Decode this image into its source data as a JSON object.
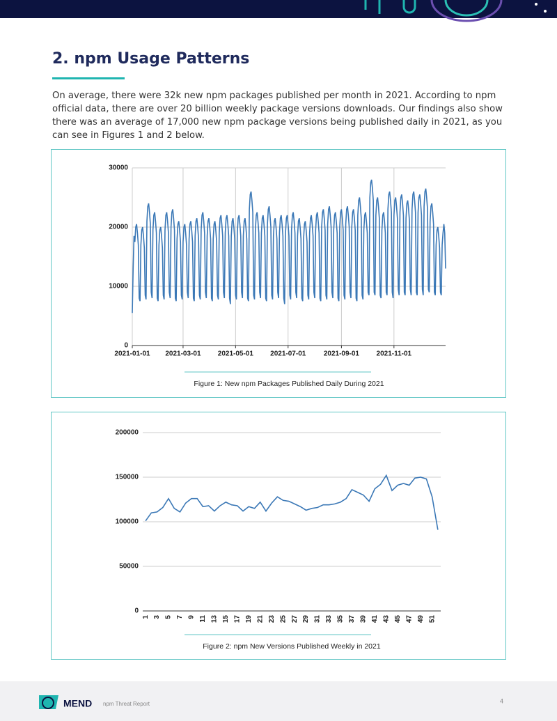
{
  "heading": "2. npm Usage Patterns",
  "paragraph": "On average, there were 32k new npm packages published per month in 2021. According to npm official data, there are over 20 billion weekly package versions downloads. Our findings also show there was an average of 17,000 new npm package versions being published daily in 2021, as you can see in Figures 1 and 2 below.",
  "chart_data": [
    {
      "type": "line",
      "caption": "Figure 1: New npm Packages Published Daily During 2021",
      "color": "#3b78b6",
      "grid": true,
      "xlim": [
        0,
        364
      ],
      "xticks": [
        {
          "value": 0,
          "label": "2021-01-01"
        },
        {
          "value": 59,
          "label": "2021-03-01"
        },
        {
          "value": 120,
          "label": "2021-05-01"
        },
        {
          "value": 181,
          "label": "2021-07-01"
        },
        {
          "value": 243,
          "label": "2021-09-01"
        },
        {
          "value": 304,
          "label": "2021-11-01"
        }
      ],
      "ylim": [
        0,
        30000
      ],
      "yticks": [
        0,
        10000,
        20000,
        30000
      ],
      "values": [
        5500,
        13000,
        18500,
        17500,
        20000,
        20500,
        19000,
        17000,
        8000,
        7500,
        17000,
        19500,
        20000,
        18500,
        16500,
        8500,
        7800,
        21000,
        23500,
        24000,
        22500,
        20500,
        9000,
        8000,
        19500,
        22000,
        22500,
        21000,
        19000,
        8000,
        7500,
        17000,
        19500,
        20000,
        18500,
        16500,
        8500,
        7800,
        19500,
        22000,
        22500,
        21000,
        19000,
        9000,
        8000,
        20000,
        22500,
        23000,
        21500,
        19500,
        8000,
        7500,
        18000,
        20500,
        21000,
        19500,
        17500,
        8500,
        7800,
        17500,
        20000,
        20500,
        19000,
        17000,
        9000,
        8000,
        18000,
        20500,
        21000,
        19500,
        17500,
        8000,
        7500,
        18500,
        21000,
        21500,
        20000,
        18000,
        8500,
        7800,
        19500,
        22000,
        22500,
        21000,
        19000,
        9000,
        8000,
        18500,
        21000,
        21500,
        20000,
        18000,
        8000,
        7500,
        18000,
        20500,
        21000,
        19500,
        17500,
        8500,
        7800,
        19000,
        21500,
        22000,
        20500,
        18500,
        9000,
        8000,
        19000,
        21500,
        22000,
        20500,
        18500,
        8000,
        7000,
        18500,
        21000,
        21500,
        20000,
        18000,
        8500,
        7800,
        19000,
        21500,
        22000,
        20500,
        18500,
        9000,
        8000,
        18500,
        21000,
        21500,
        20000,
        18000,
        8000,
        7500,
        23000,
        25500,
        26000,
        24500,
        22500,
        8500,
        7800,
        19500,
        22000,
        22500,
        21000,
        19000,
        9000,
        8000,
        19000,
        21500,
        22000,
        20500,
        18500,
        8000,
        7500,
        20500,
        23000,
        23500,
        22000,
        20000,
        8500,
        7800,
        18500,
        21000,
        21500,
        20000,
        18000,
        9000,
        8000,
        19000,
        21500,
        22000,
        20500,
        18500,
        8000,
        7000,
        19000,
        21500,
        22000,
        20500,
        18500,
        8500,
        7800,
        19500,
        22000,
        22500,
        21000,
        19000,
        9000,
        8000,
        18500,
        21000,
        21500,
        20000,
        18000,
        8000,
        7500,
        18000,
        20500,
        21000,
        19500,
        17500,
        8500,
        7800,
        19000,
        21500,
        22000,
        20500,
        18500,
        9000,
        8000,
        19500,
        22000,
        22500,
        21000,
        19000,
        8000,
        7500,
        20000,
        22500,
        23000,
        21500,
        19500,
        8500,
        7800,
        20500,
        23000,
        23500,
        22000,
        20000,
        9000,
        8000,
        19500,
        22000,
        22500,
        21000,
        19000,
        8000,
        7500,
        20000,
        22500,
        23000,
        21500,
        19500,
        8500,
        7800,
        20500,
        23000,
        23500,
        22000,
        20000,
        9000,
        8000,
        20000,
        22500,
        23000,
        21500,
        19500,
        8000,
        7500,
        22000,
        24500,
        25000,
        23500,
        21500,
        8500,
        7800,
        19500,
        22000,
        22500,
        21000,
        19000,
        9000,
        8500,
        25000,
        27500,
        28000,
        26500,
        24500,
        9000,
        8500,
        22000,
        24500,
        25000,
        23500,
        21500,
        8500,
        8000,
        19500,
        22000,
        22500,
        21000,
        19000,
        9000,
        8500,
        23000,
        25500,
        26000,
        24500,
        22500,
        9000,
        8000,
        22000,
        24500,
        25000,
        23500,
        21500,
        9500,
        8500,
        22500,
        25000,
        25500,
        24000,
        22000,
        9000,
        8500,
        21500,
        24000,
        24500,
        23000,
        21000,
        9500,
        8500,
        23000,
        25500,
        26000,
        24500,
        22500,
        9000,
        8500,
        22500,
        25000,
        25500,
        24000,
        22000,
        9500,
        8500,
        23500,
        26000,
        26500,
        25000,
        23000,
        9500,
        9000,
        21000,
        23500,
        24000,
        22500,
        20500,
        9000,
        8500,
        17000,
        19500,
        20000,
        18500,
        16500,
        9000,
        8500,
        17000,
        19000,
        20500,
        19000,
        13000
      ]
    },
    {
      "type": "line",
      "caption": "Figure 2: npm New Versions Published Weekly in 2021",
      "color": "#3b78b6",
      "grid": true,
      "categories": [
        "1",
        null,
        "3",
        null,
        "5",
        null,
        "7",
        null,
        "9",
        null,
        "11",
        null,
        "13",
        null,
        "15",
        null,
        "17",
        null,
        "19",
        null,
        "21",
        null,
        "23",
        null,
        "25",
        null,
        "27",
        null,
        "29",
        null,
        "31",
        null,
        "33",
        null,
        "35",
        null,
        "37",
        null,
        "39",
        null,
        "41",
        null,
        "43",
        null,
        "45",
        null,
        "47",
        null,
        "49",
        null,
        "51",
        null
      ],
      "ylim": [
        0,
        200000
      ],
      "yticks": [
        0,
        50000,
        100000,
        150000,
        200000
      ],
      "values": [
        101000,
        110000,
        111000,
        116000,
        126000,
        115000,
        111000,
        121000,
        126000,
        126000,
        117000,
        118000,
        112000,
        118000,
        122000,
        119000,
        118000,
        112000,
        117000,
        115000,
        122000,
        112000,
        121000,
        128000,
        124000,
        123000,
        120000,
        117000,
        113000,
        115000,
        116000,
        119000,
        119000,
        120000,
        122000,
        126000,
        136000,
        133000,
        130000,
        123000,
        137000,
        142000,
        152000,
        135000,
        141000,
        143000,
        141000,
        149000,
        150000,
        148000,
        128000,
        91000
      ]
    }
  ],
  "footer": {
    "brand": "MEND",
    "report": "npm Threat Report",
    "page": "4"
  }
}
